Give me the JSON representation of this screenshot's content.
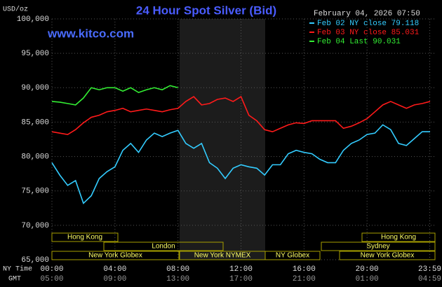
{
  "chart_data": {
    "type": "line",
    "title": "24 Hour Spot Silver (Bid)",
    "site": "www.kitco.com",
    "y_unit": "USD/oz",
    "timestamp": "February 04, 2026 07:50",
    "x_axis_label": "NY Time",
    "x2_axis_label": "GMT",
    "x": [
      0,
      0.5,
      1,
      1.5,
      2,
      2.5,
      3,
      3.5,
      4,
      4.5,
      5,
      5.5,
      6,
      6.5,
      7,
      7.5,
      8,
      8.5,
      9,
      9.5,
      10,
      10.5,
      11,
      11.5,
      12,
      12.5,
      13,
      13.5,
      14,
      14.5,
      15,
      15.5,
      16,
      16.5,
      17,
      17.5,
      18,
      18.5,
      19,
      19.5,
      20,
      20.5,
      21,
      21.5,
      22,
      22.5,
      23,
      23.5,
      24
    ],
    "series": [
      {
        "name": "Feb 02 NY close 79.118",
        "color": "#33ccff",
        "values": [
          79.1,
          77.3,
          75.8,
          76.5,
          73.2,
          74.3,
          76.8,
          77.8,
          78.5,
          80.9,
          81.9,
          80.6,
          82.4,
          83.4,
          82.9,
          83.4,
          83.8,
          81.9,
          81.2,
          81.9,
          79.1,
          78.3,
          76.8,
          78.3,
          78.8,
          78.5,
          78.3,
          77.3,
          78.8,
          78.8,
          80.4,
          80.9,
          80.6,
          80.4,
          79.6,
          79.1,
          79.1,
          80.9,
          81.9,
          82.4,
          83.2,
          83.4,
          84.6,
          83.9,
          81.9,
          81.6,
          82.6,
          83.6,
          83.6
        ]
      },
      {
        "name": "Feb 03 NY close 85.031",
        "color": "#ff1a1a",
        "values": [
          83.6,
          83.4,
          83.2,
          83.9,
          84.9,
          85.7,
          86.0,
          86.5,
          86.7,
          87.0,
          86.5,
          86.7,
          86.9,
          86.7,
          86.5,
          86.8,
          87.0,
          88.0,
          88.7,
          87.5,
          87.7,
          88.3,
          88.5,
          88.0,
          88.7,
          86.0,
          85.2,
          83.9,
          83.6,
          84.1,
          84.6,
          84.9,
          84.8,
          85.2,
          85.2,
          85.2,
          85.2,
          84.1,
          84.4,
          84.9,
          85.5,
          86.5,
          87.5,
          88.0,
          87.5,
          87.0,
          87.5,
          87.7,
          88.0
        ]
      },
      {
        "name": "Feb 04 Last 90.031",
        "color": "#33ee33",
        "values": [
          88.0,
          87.9,
          87.7,
          87.5,
          88.5,
          90.0,
          89.7,
          90.0,
          90.0,
          89.5,
          90.0,
          89.3,
          89.7,
          90.0,
          89.7,
          90.3,
          90.0,
          null,
          null,
          null,
          null,
          null,
          null,
          null,
          null,
          null,
          null,
          null,
          null,
          null,
          null,
          null,
          null,
          null,
          null,
          null,
          null,
          null,
          null,
          null,
          null,
          null,
          null,
          null,
          null,
          null,
          null,
          null,
          null
        ]
      }
    ],
    "xlim": [
      0,
      24
    ],
    "xticks": [
      {
        "value": 0,
        "label": "00:00"
      },
      {
        "value": 4,
        "label": "04:00"
      },
      {
        "value": 8,
        "label": "08:00"
      },
      {
        "value": 12,
        "label": "12:00"
      },
      {
        "value": 16,
        "label": "16:00"
      },
      {
        "value": 20,
        "label": "20:00"
      },
      {
        "value": 23.98,
        "label": "23:59"
      }
    ],
    "gmt_labels": [
      "05:00",
      "09:00",
      "13:00",
      "17:00",
      "21:00",
      "01:00",
      "04:59"
    ],
    "ylim": [
      65,
      100
    ],
    "yticks": [
      {
        "value": 65,
        "label": "65,000"
      },
      {
        "value": 70,
        "label": "70,000"
      },
      {
        "value": 75,
        "label": "75,000"
      },
      {
        "value": 80,
        "label": "80,000"
      },
      {
        "value": 85,
        "label": "85,000"
      },
      {
        "value": 90,
        "label": "90,000"
      },
      {
        "value": 95,
        "label": "95,000"
      },
      {
        "value": 100,
        "label": "100,000"
      }
    ],
    "grid": true,
    "sessions": [
      "Hong Kong",
      "London",
      "New York Globex",
      "New York NYMEX",
      "NY Globex",
      "Sydney",
      "Hong Kong",
      "New York Globex"
    ]
  }
}
